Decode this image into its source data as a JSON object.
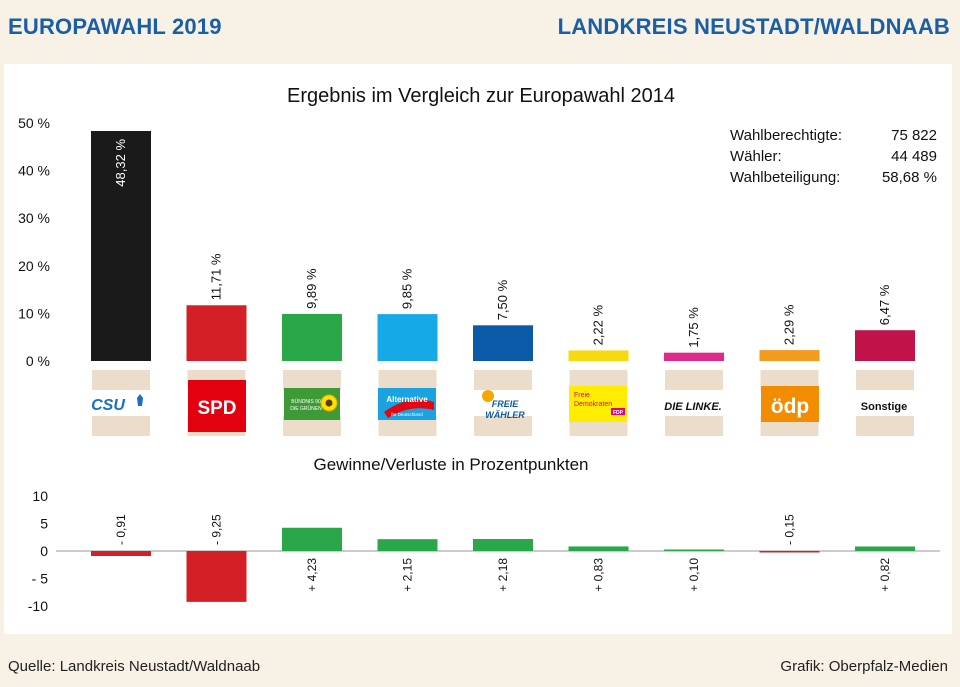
{
  "header": {
    "left_title": "EUROPAWAHL 2019",
    "right_title": "LANDKREIS NEUSTADT/WALDNAAB"
  },
  "footer": {
    "source": "Quelle: Landkreis Neustadt/Waldnaab",
    "credit": "Grafik: Oberpfalz-Medien"
  },
  "stats": {
    "eligible_label": "Wahlberechtigte:",
    "eligible_value": "75 822",
    "voters_label": "Wähler:",
    "voters_value": "44 489",
    "turnout_label": "Wahlbeteiligung:",
    "turnout_value": "58,68 %"
  },
  "colors": {
    "CSU": "#1a1a1a",
    "SPD": "#d41f26",
    "GRUENE": "#2aa748",
    "AfD": "#16a9e8",
    "FREIE_WAEHLER": "#0b5aa8",
    "FDP": "#f6d90f",
    "LINKE": "#df2a8c",
    "OEDP": "#f29b1d",
    "Sonstige": "#c1124a",
    "gain": "#2aa748",
    "loss": "#d41f26"
  },
  "chart_data": [
    {
      "type": "bar",
      "title": "Ergebnis im Vergleich zur Europawahl 2014",
      "categories": [
        "CSU",
        "SPD",
        "GRÜNE",
        "AfD",
        "FREIE WÄHLER",
        "FDP",
        "DIE LINKE.",
        "ödp",
        "Sonstige"
      ],
      "values": [
        48.32,
        11.71,
        9.89,
        9.85,
        7.5,
        2.22,
        1.75,
        2.29,
        6.47
      ],
      "value_labels": [
        "48,32 %",
        "11,71 %",
        "9,89 %",
        "9,85 %",
        "7,50 %",
        "2,22 %",
        "1,75 %",
        "2,29 %",
        "6,47 %"
      ],
      "yticks": [
        "50 %",
        "40 %",
        "30 %",
        "20 %",
        "10 %",
        "0 %"
      ],
      "ylim": [
        0,
        50
      ],
      "grid": false
    },
    {
      "type": "bar",
      "title": "Gewinne/Verluste in Prozentpunkten",
      "categories": [
        "CSU",
        "SPD",
        "GRÜNE",
        "AfD",
        "FREIE WÄHLER",
        "FDP",
        "DIE LINKE.",
        "ödp",
        "Sonstige"
      ],
      "values": [
        -0.91,
        -9.25,
        4.23,
        2.15,
        2.18,
        0.83,
        0.1,
        -0.15,
        0.82
      ],
      "value_labels": [
        "- 0,91",
        "- 9,25",
        "+ 4,23",
        "+ 2,15",
        "+ 2,18",
        "+ 0,83",
        "+ 0,10",
        "- 0,15",
        "+ 0,82"
      ],
      "yticks": [
        "10",
        "5",
        "0",
        "- 5",
        "-10"
      ],
      "ylim": [
        -10,
        10
      ],
      "grid": false
    }
  ],
  "logos": {
    "csu": "CSU",
    "spd": "SPD",
    "gruene_1": "BÜNDNIS 90",
    "gruene_2": "DIE GRÜNEN",
    "afd_1": "Alternative",
    "afd_2": "für Deutschland",
    "fw_1": "FREIE",
    "fw_2": "WÄHLER",
    "fdp_1": "Freie",
    "fdp_2": "Demokraten",
    "fdp_3": "FDP",
    "linke": "DIE LINKE.",
    "oedp": "ödp",
    "sonstige": "Sonstige"
  }
}
